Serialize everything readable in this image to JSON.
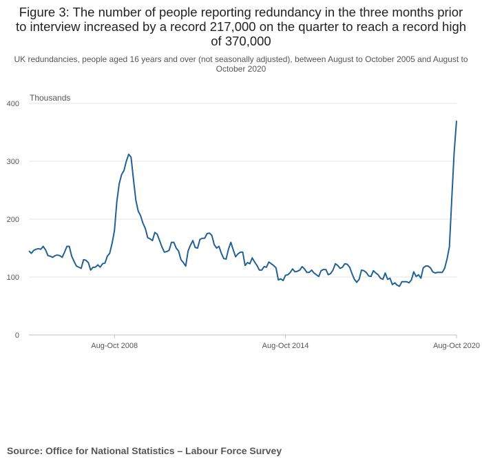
{
  "page": {
    "title": "Figure 3: The number of people reporting redundancy in the three months prior to interview increased by a record 217,000 on the quarter to reach a record high of 370,000",
    "subtitle": "UK redundancies, people aged 16 years and over (not seasonally adjusted), between August to October 2005 and August to October 2020",
    "source": "Source: Office for National Statistics – Labour Force Survey"
  },
  "colors": {
    "line": "#206095",
    "grid": "#e6e6e6",
    "axis": "#bfbfbf",
    "tick_text": "#555555"
  },
  "chart_data": {
    "type": "line",
    "title": "Figure 3: The number of people reporting redundancy in the three months prior to interview increased by a record 217,000 on the quarter to reach a record high of 370,000",
    "subtitle": "UK redundancies, people aged 16 years and over (not seasonally adjusted), between August to October 2005 and August to October 2020",
    "ylabel": "Thousands",
    "xlabel": "",
    "ylim": [
      0,
      400
    ],
    "yticks": [
      0,
      100,
      200,
      300,
      400
    ],
    "grid": true,
    "x_start": "Aug-Oct 2005",
    "x_end": "Aug-Oct 2020",
    "xticks": [
      {
        "label": "Aug-Oct 2008"
      },
      {
        "label": "Aug-Oct 2014"
      },
      {
        "label": "Aug-Oct 2020"
      }
    ],
    "series": [
      {
        "name": "",
        "values": [
          145,
          141,
          146,
          148,
          149,
          148,
          153,
          147,
          137,
          136,
          134,
          137,
          138,
          137,
          134,
          143,
          153,
          153,
          136,
          127,
          119,
          117,
          115,
          130,
          129,
          125,
          112,
          117,
          117,
          121,
          117,
          123,
          124,
          136,
          141,
          158,
          180,
          230,
          261,
          277,
          284,
          300,
          312,
          307,
          269,
          233,
          214,
          206,
          193,
          184,
          168,
          166,
          163,
          177,
          174,
          163,
          152,
          143,
          144,
          146,
          160,
          160,
          150,
          145,
          130,
          125,
          119,
          145,
          155,
          163,
          151,
          150,
          165,
          167,
          167,
          175,
          176,
          172,
          156,
          150,
          153,
          141,
          132,
          131,
          148,
          160,
          147,
          135,
          140,
          143,
          143,
          120,
          125,
          123,
          133,
          126,
          120,
          112,
          112,
          118,
          117,
          126,
          123,
          120,
          116,
          95,
          97,
          94,
          103,
          104,
          108,
          114,
          109,
          110,
          112,
          118,
          114,
          108,
          108,
          112,
          107,
          104,
          101,
          111,
          113,
          113,
          104,
          106,
          112,
          123,
          120,
          115,
          117,
          123,
          122,
          117,
          106,
          96,
          91,
          96,
          112,
          111,
          108,
          102,
          101,
          111,
          107,
          104,
          98,
          96,
          107,
          96,
          98,
          87,
          90,
          86,
          84,
          92,
          92,
          92,
          90,
          95,
          109,
          101,
          104,
          98,
          116,
          119,
          119,
          116,
          109,
          107,
          108,
          108,
          108,
          115,
          131,
          152,
          235,
          315,
          370
        ]
      }
    ]
  }
}
